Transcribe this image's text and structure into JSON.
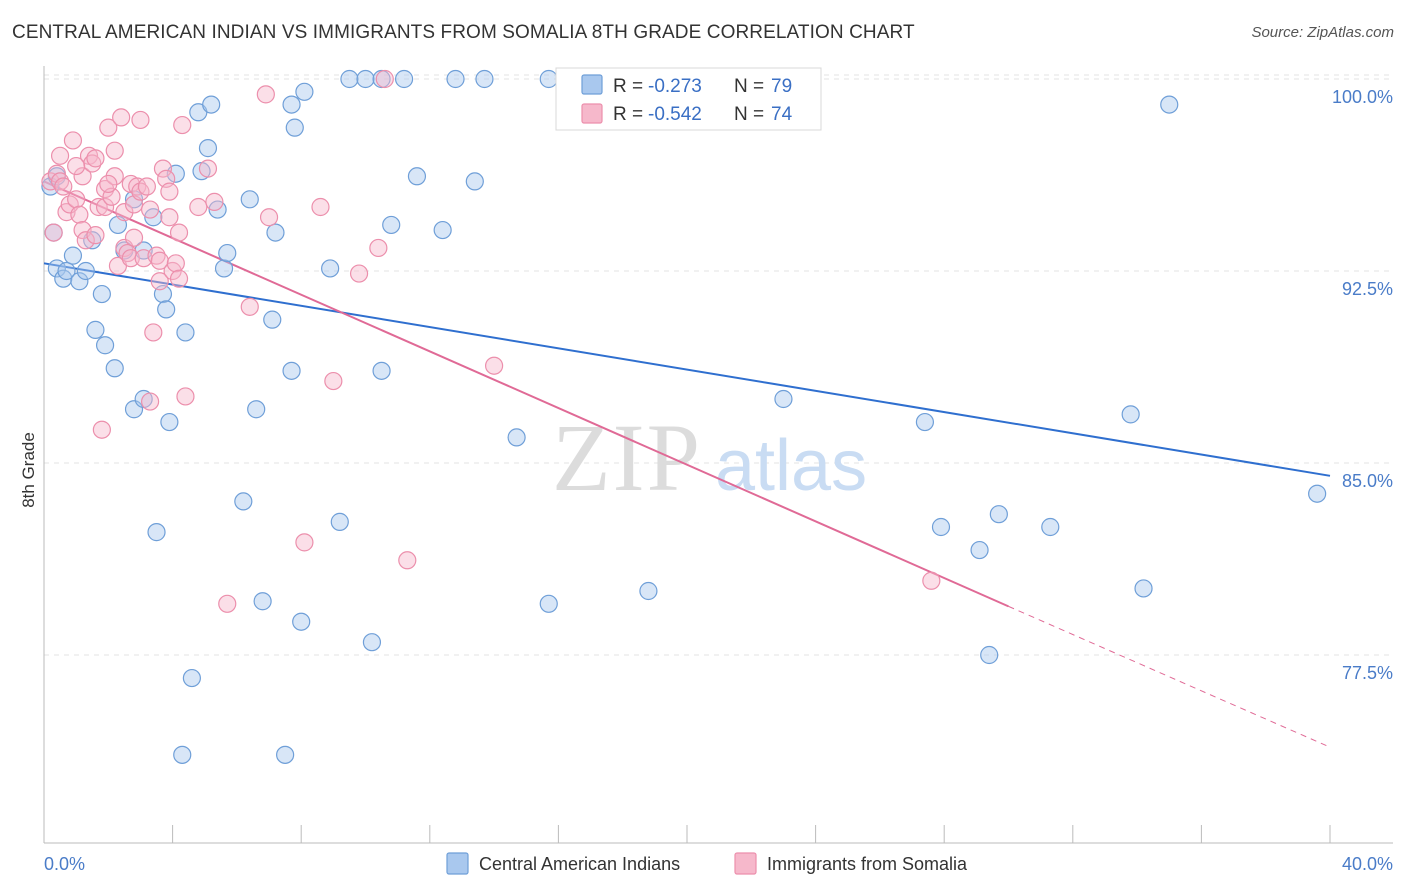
{
  "header": {
    "title": "CENTRAL AMERICAN INDIAN VS IMMIGRANTS FROM SOMALIA 8TH GRADE CORRELATION CHART",
    "source": "Source: ZipAtlas.com"
  },
  "watermark": {
    "zip": "ZIP",
    "atlas": "atlas"
  },
  "colors": {
    "blue_fill": "#a9c8ee",
    "blue_stroke": "#6f9fd8",
    "blue_line": "#2f6fcf",
    "pink_fill": "#f6b8cb",
    "pink_stroke": "#ec8fac",
    "pink_line": "#e06a96",
    "tick_text": "#4a7cc8"
  },
  "stats": [
    {
      "r_label": "R =",
      "r_value": "-0.273",
      "n_label": "N =",
      "n_value": "79"
    },
    {
      "r_label": "R =",
      "r_value": "-0.542",
      "n_label": "N =",
      "n_value": "74"
    }
  ],
  "chart_data": {
    "type": "scatter",
    "title": "CENTRAL AMERICAN INDIAN VS IMMIGRANTS FROM SOMALIA 8TH GRADE CORRELATION CHART",
    "xlabel": "",
    "ylabel": "8th Grade",
    "xlim": [
      0,
      40
    ],
    "ylim": [
      70.5,
      101.5
    ],
    "x_tick_labels": [
      "0.0%",
      "40.0%"
    ],
    "y_ticks": [
      77.5,
      85.0,
      92.5,
      100.0
    ],
    "y_tick_labels": [
      "77.5%",
      "85.0%",
      "92.5%",
      "100.0%"
    ],
    "grid": true,
    "legend_position": "bottom-center",
    "series": [
      {
        "name": "Central American Indians",
        "color": "#a9c8ee",
        "trend": {
          "x": [
            0.0,
            40.0
          ],
          "y": [
            92.8,
            84.5
          ]
        },
        "points": [
          [
            0.2,
            95.8
          ],
          [
            0.3,
            94.0
          ],
          [
            0.4,
            96.2
          ],
          [
            0.4,
            92.6
          ],
          [
            0.6,
            92.2
          ],
          [
            0.7,
            92.5
          ],
          [
            0.9,
            93.1
          ],
          [
            1.1,
            92.1
          ],
          [
            1.3,
            92.5
          ],
          [
            1.5,
            93.7
          ],
          [
            1.6,
            90.2
          ],
          [
            1.8,
            91.6
          ],
          [
            1.9,
            89.6
          ],
          [
            2.2,
            88.7
          ],
          [
            2.3,
            94.3
          ],
          [
            2.5,
            93.3
          ],
          [
            2.8,
            87.1
          ],
          [
            2.8,
            95.3
          ],
          [
            3.1,
            93.3
          ],
          [
            3.1,
            87.5
          ],
          [
            3.4,
            94.6
          ],
          [
            3.5,
            82.3
          ],
          [
            3.7,
            91.6
          ],
          [
            3.8,
            91.0
          ],
          [
            3.9,
            86.6
          ],
          [
            4.1,
            96.3
          ],
          [
            4.3,
            73.6
          ],
          [
            4.4,
            90.1
          ],
          [
            4.6,
            76.6
          ],
          [
            4.8,
            98.7
          ],
          [
            4.9,
            96.4
          ],
          [
            5.1,
            97.3
          ],
          [
            5.2,
            99.0
          ],
          [
            5.4,
            94.9
          ],
          [
            5.6,
            92.6
          ],
          [
            5.7,
            93.2
          ],
          [
            6.2,
            83.5
          ],
          [
            6.4,
            95.3
          ],
          [
            6.6,
            87.1
          ],
          [
            6.8,
            79.6
          ],
          [
            7.1,
            90.6
          ],
          [
            7.2,
            94.0
          ],
          [
            7.5,
            73.6
          ],
          [
            7.7,
            88.6
          ],
          [
            7.7,
            99.0
          ],
          [
            7.8,
            98.1
          ],
          [
            8.0,
            78.8
          ],
          [
            8.1,
            99.5
          ],
          [
            8.9,
            92.6
          ],
          [
            9.2,
            82.7
          ],
          [
            9.5,
            100.0
          ],
          [
            10.0,
            100.0
          ],
          [
            10.2,
            78.0
          ],
          [
            10.5,
            100.0
          ],
          [
            10.5,
            88.6
          ],
          [
            10.8,
            94.3
          ],
          [
            11.2,
            100.0
          ],
          [
            11.6,
            96.2
          ],
          [
            12.4,
            94.1
          ],
          [
            12.8,
            100.0
          ],
          [
            13.4,
            96.0
          ],
          [
            13.7,
            100.0
          ],
          [
            14.7,
            86.0
          ],
          [
            15.7,
            100.0
          ],
          [
            15.7,
            79.5
          ],
          [
            17.1,
            100.0
          ],
          [
            18.8,
            80.0
          ],
          [
            21.6,
            100.0
          ],
          [
            23.0,
            87.5
          ],
          [
            27.4,
            86.6
          ],
          [
            27.9,
            82.5
          ],
          [
            29.1,
            81.6
          ],
          [
            29.4,
            77.5
          ],
          [
            29.7,
            83.0
          ],
          [
            31.3,
            82.5
          ],
          [
            33.8,
            86.9
          ],
          [
            34.2,
            80.1
          ],
          [
            39.6,
            83.8
          ],
          [
            35.0,
            99.0
          ]
        ]
      },
      {
        "name": "Immigrants from Somalia",
        "color": "#f6b8cb",
        "trend": {
          "x": [
            0.0,
            30.0
          ],
          "y": [
            96.0,
            79.4
          ]
        },
        "trend_dashed": {
          "x": [
            30.0,
            40.0
          ],
          "y": [
            79.4,
            73.9
          ]
        },
        "points": [
          [
            0.2,
            96.0
          ],
          [
            0.3,
            94.0
          ],
          [
            0.4,
            96.3
          ],
          [
            0.5,
            96.0
          ],
          [
            0.5,
            97.0
          ],
          [
            0.6,
            95.8
          ],
          [
            0.7,
            94.8
          ],
          [
            0.8,
            95.1
          ],
          [
            0.9,
            97.6
          ],
          [
            1.0,
            95.3
          ],
          [
            1.1,
            94.7
          ],
          [
            1.2,
            96.2
          ],
          [
            1.2,
            94.1
          ],
          [
            1.3,
            93.7
          ],
          [
            1.4,
            97.0
          ],
          [
            1.5,
            96.7
          ],
          [
            1.6,
            96.9
          ],
          [
            1.6,
            93.9
          ],
          [
            1.7,
            95.0
          ],
          [
            1.8,
            86.3
          ],
          [
            1.9,
            95.7
          ],
          [
            1.9,
            95.0
          ],
          [
            2.0,
            98.1
          ],
          [
            2.1,
            95.4
          ],
          [
            2.2,
            96.2
          ],
          [
            2.2,
            97.2
          ],
          [
            2.3,
            92.7
          ],
          [
            2.4,
            98.5
          ],
          [
            2.5,
            94.8
          ],
          [
            2.5,
            93.4
          ],
          [
            2.6,
            93.2
          ],
          [
            2.7,
            95.9
          ],
          [
            2.7,
            93.0
          ],
          [
            2.8,
            95.1
          ],
          [
            2.9,
            95.8
          ],
          [
            3.0,
            95.6
          ],
          [
            3.0,
            98.4
          ],
          [
            3.1,
            93.0
          ],
          [
            3.2,
            95.8
          ],
          [
            3.3,
            87.4
          ],
          [
            3.3,
            94.9
          ],
          [
            3.4,
            90.1
          ],
          [
            3.5,
            93.1
          ],
          [
            3.6,
            92.1
          ],
          [
            3.6,
            92.9
          ],
          [
            3.7,
            96.5
          ],
          [
            3.8,
            96.1
          ],
          [
            3.9,
            95.6
          ],
          [
            4.0,
            92.5
          ],
          [
            4.1,
            92.8
          ],
          [
            4.2,
            94.0
          ],
          [
            4.3,
            98.2
          ],
          [
            4.4,
            87.6
          ],
          [
            4.8,
            95.0
          ],
          [
            5.1,
            96.5
          ],
          [
            5.3,
            95.2
          ],
          [
            5.7,
            79.5
          ],
          [
            6.4,
            91.1
          ],
          [
            6.9,
            99.4
          ],
          [
            7.0,
            94.6
          ],
          [
            8.1,
            81.9
          ],
          [
            8.6,
            95.0
          ],
          [
            9.0,
            88.2
          ],
          [
            9.8,
            92.4
          ],
          [
            10.4,
            93.4
          ],
          [
            10.6,
            100.0
          ],
          [
            11.3,
            81.2
          ],
          [
            14.0,
            88.8
          ],
          [
            27.6,
            80.4
          ],
          [
            1.0,
            96.6
          ],
          [
            2.0,
            95.9
          ],
          [
            3.9,
            94.6
          ],
          [
            4.2,
            92.2
          ],
          [
            2.8,
            93.8
          ]
        ]
      }
    ]
  }
}
